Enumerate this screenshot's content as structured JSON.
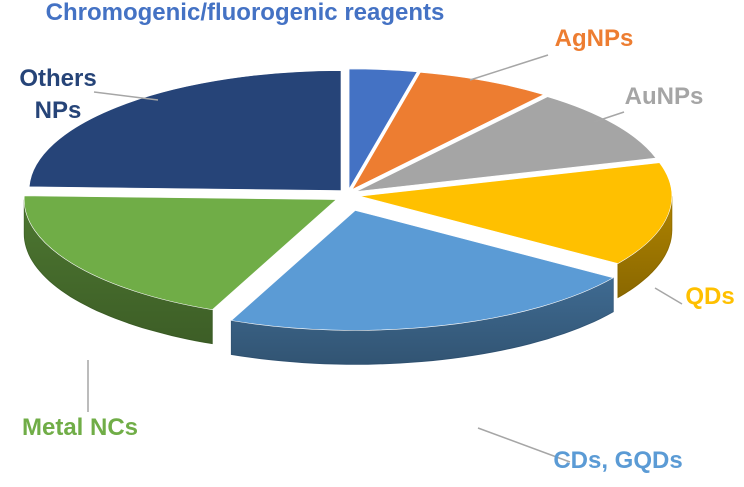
{
  "chart_data": {
    "type": "pie",
    "style": "3d-exploded",
    "title": "",
    "legend": "none",
    "slices": [
      {
        "label": "Chromogenic/fluorogenic reagents",
        "value": 3.5,
        "color": "#4472C4",
        "label_color": "#4472C4"
      },
      {
        "label": "AgNPs",
        "value": 7,
        "color": "#ED7D31",
        "label_color": "#ED7D31"
      },
      {
        "label": "AuNPs",
        "value": 10,
        "color": "#A5A5A5",
        "label_color": "#A5A5A5"
      },
      {
        "label": "QDs",
        "value": 14,
        "color": "#FFC000",
        "label_color": "#FFC000"
      },
      {
        "label": "CDs, GQDs",
        "value": 22,
        "color": "#5B9BD5",
        "label_color": "#5B9BD5"
      },
      {
        "label": "Metal NCs",
        "value": 19,
        "color": "#70AD47",
        "label_color": "#70AD47"
      },
      {
        "label": "Others NPs",
        "value": 24.5,
        "color": "#264478",
        "label_color": "#264478"
      }
    ]
  }
}
